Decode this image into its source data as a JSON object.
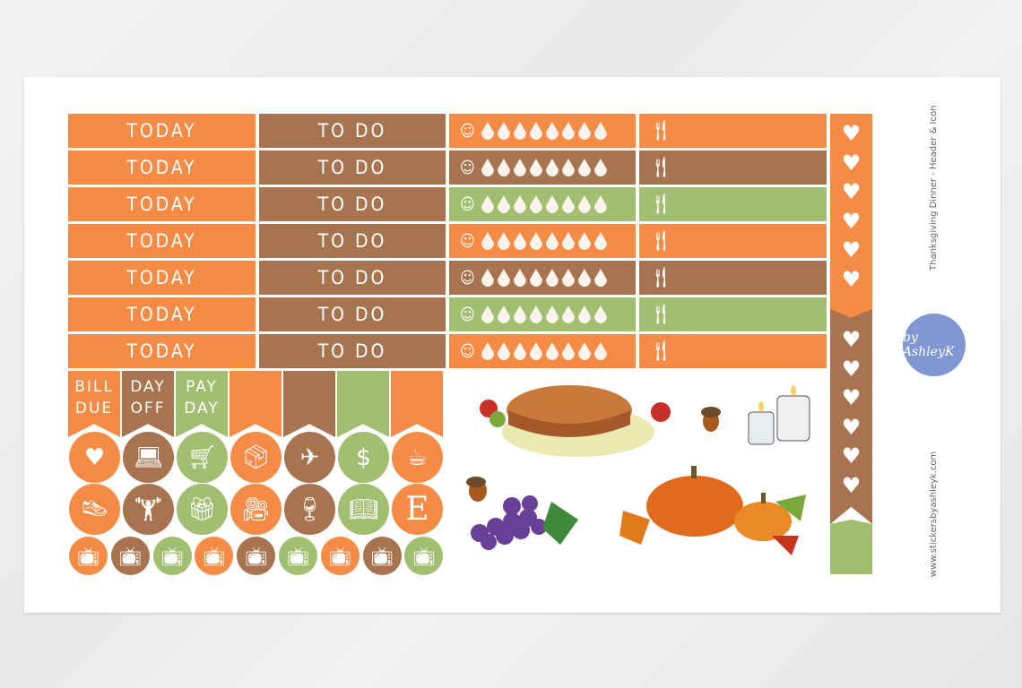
{
  "colors": {
    "orange": "#f68b45",
    "brown": "#a87450",
    "green": "#a2be70",
    "logo": "#8197d4"
  },
  "rows": [
    {
      "today": "TODAY",
      "todo": "TO DO",
      "water": "orange",
      "meal": "orange"
    },
    {
      "today": "TODAY",
      "todo": "TO DO",
      "water": "brown",
      "meal": "brown"
    },
    {
      "today": "TODAY",
      "todo": "TO DO",
      "water": "green",
      "meal": "green"
    },
    {
      "today": "TODAY",
      "todo": "TO DO",
      "water": "orange",
      "meal": "orange"
    },
    {
      "today": "TODAY",
      "todo": "TO DO",
      "water": "brown",
      "meal": "brown"
    },
    {
      "today": "TODAY",
      "todo": "TO DO",
      "water": "green",
      "meal": "green"
    },
    {
      "today": "TODAY",
      "todo": "TO DO",
      "water": "orange",
      "meal": "orange"
    }
  ],
  "water_icon": "water-drop-icon",
  "meal_icon": "fork-knife-icon",
  "flags": [
    {
      "l1": "BILL",
      "l2": "DUE",
      "color": "orange"
    },
    {
      "l1": "DAY",
      "l2": "OFF",
      "color": "brown"
    },
    {
      "l1": "PAY",
      "l2": "DAY",
      "color": "green"
    },
    {
      "l1": "",
      "l2": "",
      "color": "orange"
    },
    {
      "l1": "",
      "l2": "",
      "color": "brown"
    },
    {
      "l1": "",
      "l2": "",
      "color": "green"
    },
    {
      "l1": "",
      "l2": "",
      "color": "orange"
    }
  ],
  "icons_row1": [
    {
      "icon": "heart-icon",
      "glyph": "♥",
      "color": "orange"
    },
    {
      "icon": "laptop-icon",
      "glyph": "💻︎",
      "color": "brown"
    },
    {
      "icon": "shopping-cart-icon",
      "glyph": "🛒︎",
      "color": "green"
    },
    {
      "icon": "box-icon",
      "glyph": "📦︎",
      "color": "orange"
    },
    {
      "icon": "airplane-icon",
      "glyph": "✈",
      "color": "brown"
    },
    {
      "icon": "piggy-bank-icon",
      "glyph": "$",
      "color": "green"
    },
    {
      "icon": "coffee-cup-icon",
      "glyph": "☕︎",
      "color": "orange"
    }
  ],
  "icons_row2": [
    {
      "icon": "sneaker-icon",
      "glyph": "👟︎",
      "color": "orange"
    },
    {
      "icon": "dumbbell-icon",
      "glyph": "🏋︎",
      "color": "brown"
    },
    {
      "icon": "gift-icon",
      "glyph": "🎁︎",
      "color": "green"
    },
    {
      "icon": "movie-camera-icon",
      "glyph": "🎥︎",
      "color": "orange"
    },
    {
      "icon": "wine-icon",
      "glyph": "🍷︎",
      "color": "brown"
    },
    {
      "icon": "book-icon",
      "glyph": "📖︎",
      "color": "green"
    },
    {
      "icon": "etsy-icon",
      "glyph": "E",
      "color": "orange"
    }
  ],
  "tv_row": [
    "orange",
    "brown",
    "green",
    "orange",
    "brown",
    "green",
    "orange",
    "brown",
    "green"
  ],
  "strip": {
    "top_hearts": 6,
    "bottom_hearts": 6
  },
  "side_title": "Thanksgiving  Dinner  - Header & Icon",
  "logo_text": "by AshleyK",
  "website": "www.stickersbyashleyk.com"
}
